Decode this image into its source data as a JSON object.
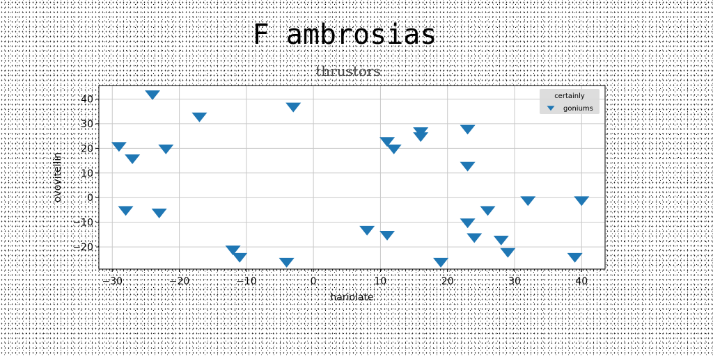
{
  "chart_data": {
    "type": "scatter",
    "title": "F ambrosias",
    "subtitle": "thrustors",
    "xlabel": "hariolate",
    "ylabel": "ovovitellin",
    "xlim": [
      -32,
      43.5
    ],
    "ylim": [
      -29,
      45.5
    ],
    "xticks": [
      -30,
      -20,
      -10,
      0,
      10,
      20,
      30,
      40
    ],
    "yticks": [
      -20,
      -10,
      0,
      10,
      20,
      30,
      40
    ],
    "grid": true,
    "legend": {
      "title": "certainly",
      "placement": "top-right"
    },
    "marker": "triangle-down",
    "series": [
      {
        "name": "goniums",
        "color": "#1f77b4",
        "points": [
          [
            -24,
            42
          ],
          [
            -17,
            33
          ],
          [
            -3,
            37
          ],
          [
            -29,
            21
          ],
          [
            -27,
            16
          ],
          [
            -22,
            20
          ],
          [
            -28,
            -5
          ],
          [
            -23,
            -6
          ],
          [
            -12,
            -21
          ],
          [
            -11,
            -24
          ],
          [
            -4,
            -26
          ],
          [
            11,
            23
          ],
          [
            12,
            20
          ],
          [
            16,
            27
          ],
          [
            16,
            25
          ],
          [
            23,
            28
          ],
          [
            23,
            13
          ],
          [
            8,
            -13
          ],
          [
            11,
            -15
          ],
          [
            19,
            -26
          ],
          [
            23,
            -10
          ],
          [
            24,
            -16
          ],
          [
            26,
            -5
          ],
          [
            28,
            -17
          ],
          [
            29,
            -22
          ],
          [
            32,
            -1
          ],
          [
            39,
            -24
          ],
          [
            40,
            -1
          ]
        ]
      }
    ]
  }
}
